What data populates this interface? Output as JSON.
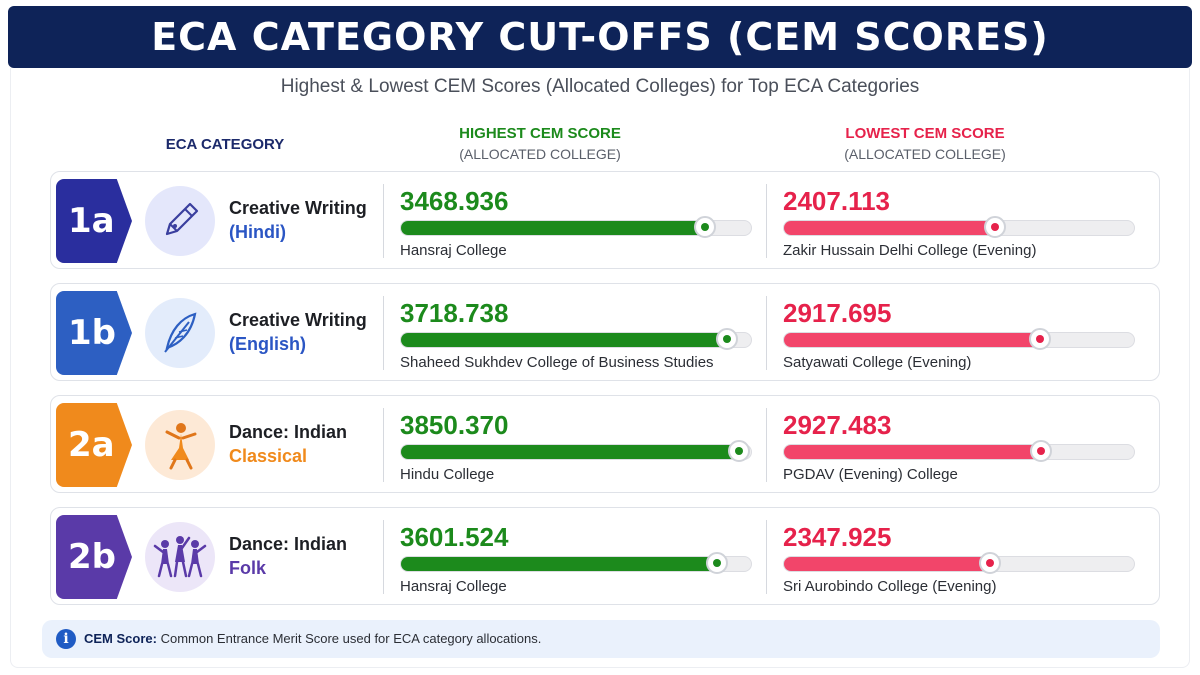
{
  "title": "ECA CATEGORY CUT-OFFS (CEM SCORES)",
  "subtitle": "Highest & Lowest CEM Scores (Allocated Colleges) for Top ECA Categories",
  "headers": {
    "category": "ECA CATEGORY",
    "highest": "HIGHEST CEM SCORE",
    "highest_sub": "(ALLOCATED COLLEGE)",
    "lowest": "LOWEST CEM SCORE",
    "lowest_sub": "(ALLOCATED COLLEGE)"
  },
  "footnote": {
    "label": "CEM Score:",
    "text": " Common Entrance Merit Score used for ECA category allocations."
  },
  "colors": {
    "banner": "#0e2358",
    "highest": "#1c8a1c",
    "lowest": "#e6224b",
    "lowest_bar": "#f2456a"
  },
  "chart_data": {
    "type": "table",
    "xlim": [
      0,
      4000
    ],
    "rows": [
      {
        "code": "1a",
        "category_line1": "Creative Writing",
        "category_line2": "(Hindi)",
        "icon": "fountain-pen-icon",
        "accent": "#2a2e9e",
        "icon_bg": "#e4e7fb",
        "line2_color": "#2b56c4",
        "highest": "3468.936",
        "highest_college": "Hansraj College",
        "lowest": "2407.113",
        "lowest_college": "Zakir Hussain Delhi College (Evening)"
      },
      {
        "code": "1b",
        "category_line1": "Creative Writing",
        "category_line2": "(English)",
        "icon": "quill-feather-icon",
        "accent": "#2d5fc2",
        "icon_bg": "#e3ecfb",
        "line2_color": "#2b56c4",
        "highest": "3718.738",
        "highest_college": "Shaheed Sukhdev College of Business Studies",
        "lowest": "2917.695",
        "lowest_college": "Satyawati College (Evening)"
      },
      {
        "code": "2a",
        "category_line1": "Dance: Indian",
        "category_line2": "Classical",
        "icon": "classical-dancer-icon",
        "accent": "#f08a1c",
        "icon_bg": "#fde9d6",
        "line2_color": "#f08a1c",
        "highest": "3850.370",
        "highest_college": "Hindu College",
        "lowest": "2927.483",
        "lowest_college": "PGDAV (Evening) College"
      },
      {
        "code": "2b",
        "category_line1": "Dance: Indian",
        "category_line2": "Folk",
        "icon": "folk-dancers-icon",
        "accent": "#5a3aa8",
        "icon_bg": "#ece6f8",
        "line2_color": "#5a3aa8",
        "highest": "3601.524",
        "highest_college": "Hansraj College",
        "lowest": "2347.925",
        "lowest_college": "Sri Aurobindo College (Evening)"
      }
    ]
  }
}
